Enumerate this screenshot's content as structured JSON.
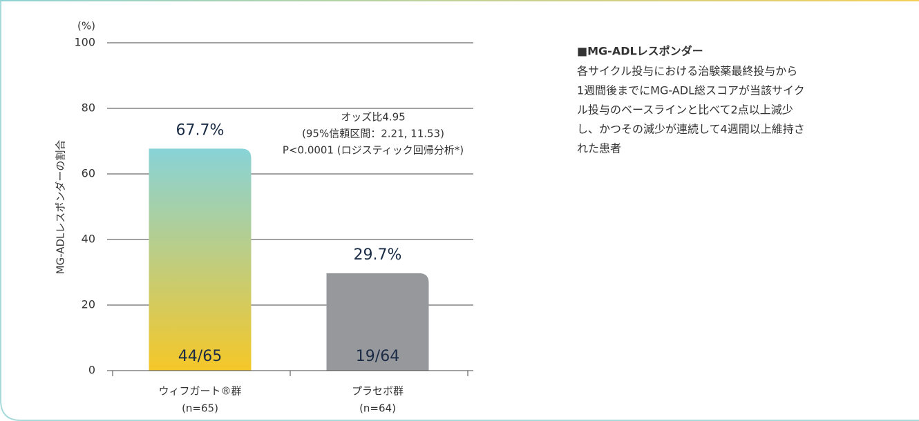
{
  "chart_data": {
    "type": "bar",
    "y_unit": "(%)",
    "ylabel": "MG-ADLレスポンダーの割合",
    "categories": [
      "ウィフガート®群",
      "プラセボ群"
    ],
    "category_notes": [
      "(n=65)",
      "(n=64)"
    ],
    "values": [
      67.7,
      29.7
    ],
    "value_labels": [
      "67.7%",
      "29.7%"
    ],
    "inner_labels": [
      "44/65",
      "19/64"
    ],
    "bar_fills": [
      [
        "#88d3d8",
        "#f5c728"
      ],
      [
        "#97989c",
        "#97989c"
      ]
    ],
    "ylim": [
      0,
      100
    ],
    "yticks": [
      0,
      20,
      40,
      60,
      80,
      100
    ],
    "grid": true,
    "annotation": [
      "オッズ比4.95",
      "(95%信頼区間：2.21, 11.53)",
      "P<0.0001 (ロジスティック回帰分析*)"
    ]
  },
  "side_note": {
    "heading": "■MG-ADLレスポンダー",
    "lines": [
      "各サイクル投与における治験薬最終投与から",
      "1週間後までにMG-ADL総スコアが当該サイク",
      "ル投与のベースラインと比べて2点以上減少",
      "し、かつその減少が連続して4週間以上維持さ",
      "れた患者"
    ]
  }
}
